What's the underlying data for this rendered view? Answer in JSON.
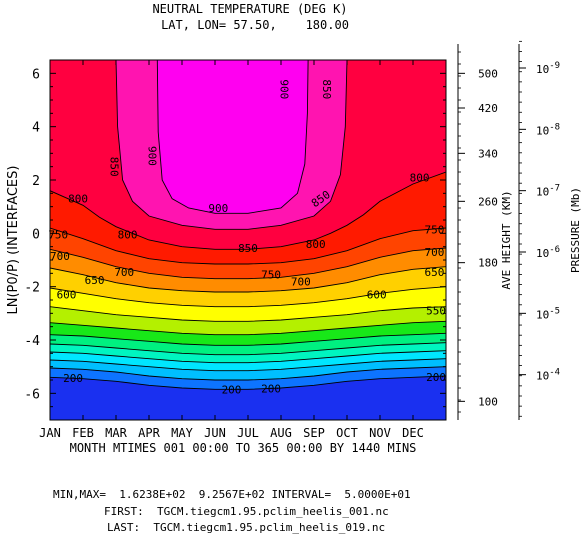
{
  "chart_data": {
    "type": "heatmap",
    "title": "NEUTRAL TEMPERATURE (DEG K)",
    "subtitle": "LAT, LON= 57.50,    180.00",
    "ylabel": "LN(P0/P) (INTERFACES)",
    "xlabel": "MONTH MTIMES 001 00:00 TO 365 00:00 BY 1440 MINS",
    "right_label_height": "AVE HEIGHT (KM)",
    "right_label_pressure": "PRESSURE (Mb)",
    "x_ticks": [
      "JAN",
      "FEB",
      "MAR",
      "APR",
      "MAY",
      "JUN",
      "JUL",
      "AUG",
      "SEP",
      "OCT",
      "NOV",
      "DEC"
    ],
    "y_ticks": [
      6,
      4,
      2,
      0,
      -2,
      -4,
      -6
    ],
    "ylim": [
      -7,
      6.5
    ],
    "height_ticks": [
      {
        "label": "500",
        "z": 6.0
      },
      {
        "label": "420",
        "z": 4.7
      },
      {
        "label": "340",
        "z": 3.0
      },
      {
        "label": "260",
        "z": 1.2
      },
      {
        "label": "180",
        "z": -1.1
      },
      {
        "label": "100",
        "z": -6.3
      }
    ],
    "pressure_ticks": [
      {
        "label": "10",
        "exp": "-9",
        "z": 6.2
      },
      {
        "label": "10",
        "exp": "-8",
        "z": 3.9
      },
      {
        "label": "10",
        "exp": "-7",
        "z": 1.6
      },
      {
        "label": "10",
        "exp": "-6",
        "z": -0.7
      },
      {
        "label": "10",
        "exp": "-5",
        "z": -3.0
      },
      {
        "label": "10",
        "exp": "-4",
        "z": -5.3
      }
    ],
    "contour_interval": 50,
    "contours": [
      {
        "value": 200,
        "x": [
          0,
          1,
          2,
          3,
          4,
          5,
          6,
          7,
          8,
          9,
          10,
          11,
          12
        ],
        "z": [
          -5.4,
          -5.45,
          -5.55,
          -5.7,
          -5.8,
          -5.85,
          -5.85,
          -5.8,
          -5.7,
          -5.55,
          -5.45,
          -5.4,
          -5.35
        ]
      },
      {
        "value": 250,
        "x": [
          0,
          1,
          2,
          3,
          4,
          5,
          6,
          7,
          8,
          9,
          10,
          11,
          12
        ],
        "z": [
          -5.05,
          -5.1,
          -5.2,
          -5.35,
          -5.45,
          -5.5,
          -5.5,
          -5.45,
          -5.35,
          -5.2,
          -5.1,
          -5.05,
          -5.0
        ]
      },
      {
        "value": 300,
        "x": [
          0,
          1,
          2,
          3,
          4,
          5,
          6,
          7,
          8,
          9,
          10,
          11,
          12
        ],
        "z": [
          -4.75,
          -4.8,
          -4.9,
          -5.0,
          -5.1,
          -5.15,
          -5.15,
          -5.1,
          -5.0,
          -4.9,
          -4.8,
          -4.75,
          -4.7
        ]
      },
      {
        "value": 350,
        "x": [
          0,
          1,
          2,
          3,
          4,
          5,
          6,
          7,
          8,
          9,
          10,
          11,
          12
        ],
        "z": [
          -4.45,
          -4.5,
          -4.6,
          -4.7,
          -4.8,
          -4.85,
          -4.85,
          -4.8,
          -4.7,
          -4.6,
          -4.5,
          -4.45,
          -4.4
        ]
      },
      {
        "value": 400,
        "x": [
          0,
          1,
          2,
          3,
          4,
          5,
          6,
          7,
          8,
          9,
          10,
          11,
          12
        ],
        "z": [
          -4.15,
          -4.2,
          -4.3,
          -4.4,
          -4.5,
          -4.55,
          -4.55,
          -4.5,
          -4.4,
          -4.3,
          -4.2,
          -4.15,
          -4.1
        ]
      },
      {
        "value": 450,
        "x": [
          0,
          1,
          2,
          3,
          4,
          5,
          6,
          7,
          8,
          9,
          10,
          11,
          12
        ],
        "z": [
          -3.8,
          -3.85,
          -3.95,
          -4.05,
          -4.15,
          -4.2,
          -4.2,
          -4.15,
          -4.05,
          -3.95,
          -3.85,
          -3.8,
          -3.75
        ]
      },
      {
        "value": 500,
        "x": [
          0,
          1,
          2,
          3,
          4,
          5,
          6,
          7,
          8,
          9,
          10,
          11,
          12
        ],
        "z": [
          -3.35,
          -3.45,
          -3.55,
          -3.65,
          -3.75,
          -3.8,
          -3.8,
          -3.75,
          -3.65,
          -3.55,
          -3.45,
          -3.35,
          -3.3
        ]
      },
      {
        "value": 550,
        "x": [
          0,
          1,
          2,
          3,
          4,
          5,
          6,
          7,
          8,
          9,
          10,
          11,
          12
        ],
        "z": [
          -2.75,
          -2.9,
          -3.05,
          -3.15,
          -3.25,
          -3.3,
          -3.3,
          -3.25,
          -3.15,
          -3.05,
          -2.9,
          -2.8,
          -2.75
        ]
      },
      {
        "value": 600,
        "x": [
          0,
          1,
          2,
          3,
          4,
          5,
          6,
          7,
          8,
          9,
          10,
          11,
          12
        ],
        "z": [
          -2.05,
          -2.25,
          -2.45,
          -2.6,
          -2.7,
          -2.75,
          -2.75,
          -2.7,
          -2.6,
          -2.45,
          -2.25,
          -2.1,
          -2.0
        ]
      },
      {
        "value": 650,
        "x": [
          0,
          1,
          2,
          3,
          4,
          5,
          6,
          7,
          8,
          9,
          10,
          11,
          12
        ],
        "z": [
          -1.3,
          -1.55,
          -1.85,
          -2.05,
          -2.15,
          -2.2,
          -2.2,
          -2.15,
          -2.05,
          -1.85,
          -1.55,
          -1.35,
          -1.25
        ]
      },
      {
        "value": 700,
        "x": [
          0,
          1,
          2,
          3,
          4,
          5,
          6,
          7,
          8,
          9,
          10,
          11,
          12
        ],
        "z": [
          -0.6,
          -0.9,
          -1.25,
          -1.5,
          -1.65,
          -1.7,
          -1.7,
          -1.65,
          -1.5,
          -1.25,
          -0.9,
          -0.65,
          -0.55
        ]
      },
      {
        "value": 750,
        "x": [
          0,
          1,
          2,
          3,
          4,
          5,
          6,
          7,
          8,
          9,
          10,
          11,
          12
        ],
        "z": [
          0.2,
          -0.2,
          -0.65,
          -0.95,
          -1.1,
          -1.15,
          -1.15,
          -1.1,
          -0.95,
          -0.65,
          -0.2,
          0.1,
          0.2
        ]
      },
      {
        "value": 800,
        "x": [
          0,
          1,
          1.5,
          2,
          2.5,
          3,
          4,
          5,
          6,
          7,
          8,
          8.5,
          9,
          9.5,
          10,
          11,
          12
        ],
        "z": [
          1.6,
          1.05,
          0.6,
          0.25,
          0.0,
          -0.25,
          -0.5,
          -0.6,
          -0.6,
          -0.5,
          -0.25,
          0.0,
          0.3,
          0.7,
          1.2,
          1.85,
          2.3
        ]
      },
      {
        "value": 850,
        "x": [
          2.0,
          2.05,
          2.2,
          2.5,
          3,
          4,
          5,
          6,
          7,
          8,
          8.5,
          8.8,
          8.95,
          9.0
        ],
        "z": [
          6.5,
          4.0,
          2.0,
          1.2,
          0.65,
          0.3,
          0.15,
          0.15,
          0.3,
          0.65,
          1.2,
          2.2,
          4.0,
          6.5
        ]
      },
      {
        "value": 900,
        "x": [
          3.25,
          3.28,
          3.4,
          3.7,
          4.2,
          5,
          6,
          7,
          7.5,
          7.72,
          7.8,
          7.82
        ],
        "z": [
          6.5,
          3.8,
          2.0,
          1.3,
          0.95,
          0.75,
          0.75,
          0.95,
          1.5,
          2.6,
          4.5,
          6.5
        ]
      }
    ],
    "contour_labels": [
      {
        "text": "900",
        "x": 7.1,
        "z": 5.4,
        "rotate": 90
      },
      {
        "text": "850",
        "x": 8.4,
        "z": 5.4,
        "rotate": 90
      },
      {
        "text": "850",
        "x": 1.95,
        "z": 2.5,
        "rotate": 90
      },
      {
        "text": "900",
        "x": 3.1,
        "z": 2.9,
        "rotate": 90
      },
      {
        "text": "900",
        "x": 5.1,
        "z": 0.95,
        "rotate": 0
      },
      {
        "text": "850",
        "x": 6.0,
        "z": -0.55,
        "rotate": 0
      },
      {
        "text": "850",
        "x": 8.2,
        "z": 1.3,
        "rotate": -35
      },
      {
        "text": "800",
        "x": 11.2,
        "z": 2.1,
        "rotate": 0
      },
      {
        "text": "800",
        "x": 0.85,
        "z": 1.3,
        "rotate": 0
      },
      {
        "text": "800",
        "x": 2.35,
        "z": -0.05,
        "rotate": 0
      },
      {
        "text": "800",
        "x": 8.05,
        "z": -0.4,
        "rotate": 0
      },
      {
        "text": "750",
        "x": 0.25,
        "z": -0.05,
        "rotate": 0
      },
      {
        "text": "750",
        "x": 6.7,
        "z": -1.55,
        "rotate": 0
      },
      {
        "text": "750",
        "x": 11.65,
        "z": 0.15,
        "rotate": 0
      },
      {
        "text": "700",
        "x": 0.3,
        "z": -0.85,
        "rotate": 0
      },
      {
        "text": "700",
        "x": 2.25,
        "z": -1.45,
        "rotate": 0
      },
      {
        "text": "700",
        "x": 7.6,
        "z": -1.8,
        "rotate": 0
      },
      {
        "text": "700",
        "x": 11.65,
        "z": -0.7,
        "rotate": 0
      },
      {
        "text": "650",
        "x": 1.35,
        "z": -1.75,
        "rotate": 0
      },
      {
        "text": "650",
        "x": 11.65,
        "z": -1.45,
        "rotate": 0
      },
      {
        "text": "600",
        "x": 0.5,
        "z": -2.3,
        "rotate": 0
      },
      {
        "text": "600",
        "x": 9.9,
        "z": -2.3,
        "rotate": 0
      },
      {
        "text": "550",
        "x": 11.7,
        "z": -2.9,
        "rotate": 0
      },
      {
        "text": "200",
        "x": 0.7,
        "z": -5.42,
        "rotate": 0
      },
      {
        "text": "200",
        "x": 5.5,
        "z": -5.85,
        "rotate": 0
      },
      {
        "text": "200",
        "x": 6.7,
        "z": -5.82,
        "rotate": 0
      },
      {
        "text": "200",
        "x": 11.7,
        "z": -5.38,
        "rotate": 0
      }
    ],
    "colors": {
      "below_200": "#1a30f0",
      "200_250": "#0d74ff",
      "250_300": "#00bfff",
      "300_350": "#00e6ff",
      "350_400": "#00f5c0",
      "400_450": "#00f080",
      "450_500": "#18e818",
      "500_550": "#b4f000",
      "550_600": "#ffff00",
      "600_650": "#ffd000",
      "650_700": "#ff8c00",
      "700_750": "#ff4400",
      "750_800": "#ff1a00",
      "800_850": "#ff0040",
      "850_900": "#ff14b0",
      "above_900": "#ff00f0"
    }
  },
  "footer": {
    "minmax": "MIN,MAX=  1.6238E+02  9.2567E+02 INTERVAL=  5.0000E+01",
    "first": "FIRST:  TGCM.tiegcm1.95.pclim_heelis_001.nc",
    "last": "LAST:  TGCM.tiegcm1.95.pclim_heelis_019.nc"
  }
}
